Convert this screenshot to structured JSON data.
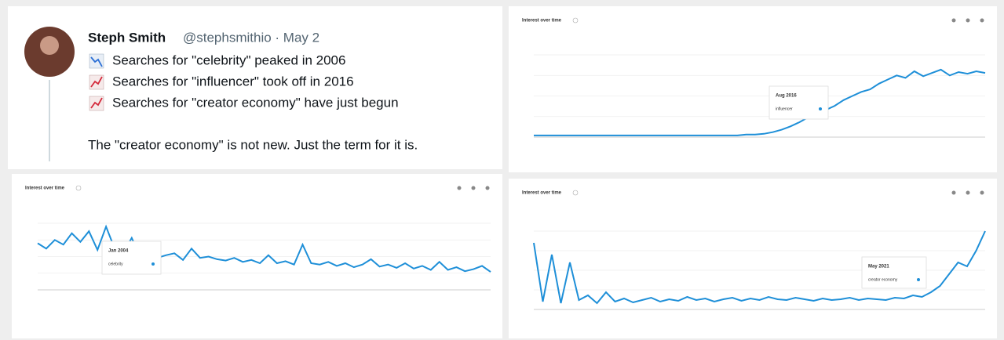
{
  "tweet": {
    "name": "Steph Smith",
    "handle": "@stephsmithio · May 2",
    "lines": [
      "Searches for \"celebrity\" peaked in 2006",
      "Searches for \"influencer\" took off in 2016",
      "Searches for \"creator economy\" have just begun"
    ],
    "body": "The \"creator economy\" is not new. Just the term for it is."
  },
  "panels": [
    {
      "title": "Interest over time",
      "tooltip_date": "Aug 2016",
      "tooltip_term": "influencer",
      "color": "#1e8fd8",
      "ylim": [
        0,
        100
      ],
      "values": [
        2,
        2,
        2,
        2,
        2,
        2,
        2,
        2,
        2,
        2,
        2,
        2,
        2,
        2,
        2,
        2,
        2,
        2,
        2,
        2,
        2,
        2,
        2,
        2,
        3,
        3,
        4,
        6,
        9,
        13,
        18,
        24,
        29,
        33,
        38,
        45,
        50,
        55,
        58,
        65,
        70,
        75,
        72,
        80,
        74,
        78,
        82,
        75,
        79,
        77,
        80,
        78
      ]
    },
    {
      "title": "Interest over time",
      "tooltip_date": "Jan 2004",
      "tooltip_term": "celebrity",
      "color": "#1e8fd8",
      "ylim": [
        0,
        100
      ],
      "values": [
        70,
        62,
        75,
        68,
        85,
        72,
        88,
        60,
        95,
        62,
        55,
        78,
        50,
        58,
        48,
        52,
        55,
        45,
        62,
        48,
        50,
        46,
        44,
        48,
        42,
        45,
        40,
        52,
        40,
        43,
        38,
        68,
        40,
        38,
        42,
        36,
        40,
        34,
        38,
        46,
        35,
        38,
        33,
        40,
        32,
        36,
        30,
        42,
        30,
        34,
        28,
        31,
        36,
        27
      ]
    },
    {
      "title": "Interest over time",
      "tooltip_date": "May 2021",
      "tooltip_term": "creator economy",
      "color": "#1e8fd8",
      "ylim": [
        0,
        100
      ],
      "values": [
        85,
        10,
        70,
        8,
        60,
        12,
        18,
        8,
        22,
        10,
        14,
        9,
        12,
        15,
        10,
        13,
        11,
        16,
        12,
        14,
        10,
        13,
        15,
        11,
        14,
        12,
        16,
        13,
        12,
        15,
        13,
        11,
        14,
        12,
        13,
        15,
        12,
        14,
        13,
        12,
        15,
        14,
        18,
        16,
        22,
        30,
        45,
        60,
        55,
        75,
        100
      ]
    }
  ]
}
